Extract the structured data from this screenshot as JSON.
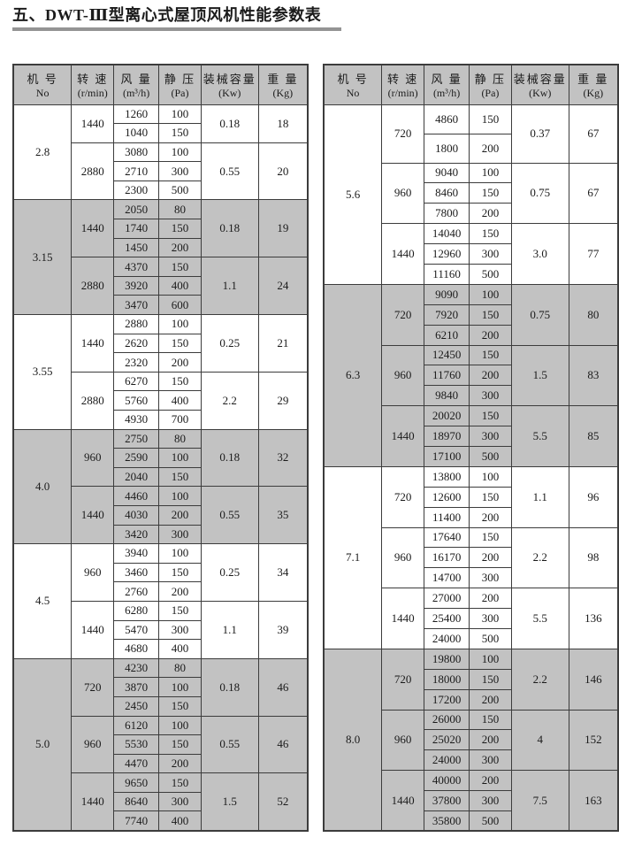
{
  "title": "五、DWT-Ⅲ型离心式屋顶风机性能参数表",
  "colors": {
    "shaded_bg": "#c2c2c2",
    "border": "#3c3c3c",
    "underline": "#949494"
  },
  "table": {
    "headers": [
      {
        "name": "no",
        "line1": "机 号",
        "line2": "No"
      },
      {
        "name": "speed",
        "line1": "转 速",
        "line2": "(r/min)"
      },
      {
        "name": "airflow",
        "line1": "风 量",
        "line2": "(m³/h)"
      },
      {
        "name": "pressure",
        "line1": "静 压",
        "line2": "(Pa)"
      },
      {
        "name": "capacity",
        "line1": "装械容量",
        "line2": "(Kw)"
      },
      {
        "name": "weight",
        "line1": "重 量",
        "line2": "(Kg)"
      }
    ],
    "left_sections": [
      {
        "no": "2.8",
        "shaded": false,
        "groups": [
          {
            "speed": "1440",
            "rows": [
              [
                "1260",
                "100"
              ],
              [
                "1040",
                "150"
              ]
            ],
            "capacity": "0.18",
            "weight": "18"
          },
          {
            "speed": "2880",
            "rows": [
              [
                "3080",
                "100"
              ],
              [
                "2710",
                "300"
              ],
              [
                "2300",
                "500"
              ]
            ],
            "capacity": "0.55",
            "weight": "20"
          }
        ]
      },
      {
        "no": "3.15",
        "shaded": true,
        "groups": [
          {
            "speed": "1440",
            "rows": [
              [
                "2050",
                "80"
              ],
              [
                "1740",
                "150"
              ],
              [
                "1450",
                "200"
              ]
            ],
            "capacity": "0.18",
            "weight": "19"
          },
          {
            "speed": "2880",
            "rows": [
              [
                "4370",
                "150"
              ],
              [
                "3920",
                "400"
              ],
              [
                "3470",
                "600"
              ]
            ],
            "capacity": "1.1",
            "weight": "24"
          }
        ]
      },
      {
        "no": "3.55",
        "shaded": false,
        "groups": [
          {
            "speed": "1440",
            "rows": [
              [
                "2880",
                "100"
              ],
              [
                "2620",
                "150"
              ],
              [
                "2320",
                "200"
              ]
            ],
            "capacity": "0.25",
            "weight": "21"
          },
          {
            "speed": "2880",
            "rows": [
              [
                "6270",
                "150"
              ],
              [
                "5760",
                "400"
              ],
              [
                "4930",
                "700"
              ]
            ],
            "capacity": "2.2",
            "weight": "29"
          }
        ]
      },
      {
        "no": "4.0",
        "shaded": true,
        "groups": [
          {
            "speed": "960",
            "rows": [
              [
                "2750",
                "80"
              ],
              [
                "2590",
                "100"
              ],
              [
                "2040",
                "150"
              ]
            ],
            "capacity": "0.18",
            "weight": "32"
          },
          {
            "speed": "1440",
            "rows": [
              [
                "4460",
                "100"
              ],
              [
                "4030",
                "200"
              ],
              [
                "3420",
                "300"
              ]
            ],
            "capacity": "0.55",
            "weight": "35"
          }
        ]
      },
      {
        "no": "4.5",
        "shaded": false,
        "groups": [
          {
            "speed": "960",
            "rows": [
              [
                "3940",
                "100"
              ],
              [
                "3460",
                "150"
              ],
              [
                "2760",
                "200"
              ]
            ],
            "capacity": "0.25",
            "weight": "34"
          },
          {
            "speed": "1440",
            "rows": [
              [
                "6280",
                "150"
              ],
              [
                "5470",
                "300"
              ],
              [
                "4680",
                "400"
              ]
            ],
            "capacity": "1.1",
            "weight": "39"
          }
        ]
      },
      {
        "no": "5.0",
        "shaded": true,
        "groups": [
          {
            "speed": "720",
            "rows": [
              [
                "4230",
                "80"
              ],
              [
                "3870",
                "100"
              ],
              [
                "2450",
                "150"
              ]
            ],
            "capacity": "0.18",
            "weight": "46"
          },
          {
            "speed": "960",
            "rows": [
              [
                "6120",
                "100"
              ],
              [
                "5530",
                "150"
              ],
              [
                "4470",
                "200"
              ]
            ],
            "capacity": "0.55",
            "weight": "46"
          },
          {
            "speed": "1440",
            "rows": [
              [
                "9650",
                "150"
              ],
              [
                "8640",
                "300"
              ],
              [
                "7740",
                "400"
              ]
            ],
            "capacity": "1.5",
            "weight": "52"
          }
        ]
      }
    ],
    "right_sections": [
      {
        "no": "5.6",
        "shaded": false,
        "groups": [
          {
            "speed": "720",
            "rows": [
              [
                "4860",
                "150"
              ],
              [
                "1800",
                "200"
              ]
            ],
            "capacity": "0.37",
            "weight": "67"
          },
          {
            "speed": "960",
            "rows": [
              [
                "9040",
                "100"
              ],
              [
                "8460",
                "150"
              ],
              [
                "7800",
                "200"
              ]
            ],
            "capacity": "0.75",
            "weight": "67"
          },
          {
            "speed": "1440",
            "rows": [
              [
                "14040",
                "150"
              ],
              [
                "12960",
                "300"
              ],
              [
                "11160",
                "500"
              ]
            ],
            "capacity": "3.0",
            "weight": "77"
          }
        ]
      },
      {
        "no": "6.3",
        "shaded": true,
        "groups": [
          {
            "speed": "720",
            "rows": [
              [
                "9090",
                "100"
              ],
              [
                "7920",
                "150"
              ],
              [
                "6210",
                "200"
              ]
            ],
            "capacity": "0.75",
            "weight": "80"
          },
          {
            "speed": "960",
            "rows": [
              [
                "12450",
                "150"
              ],
              [
                "11760",
                "200"
              ],
              [
                "9840",
                "300"
              ]
            ],
            "capacity": "1.5",
            "weight": "83"
          },
          {
            "speed": "1440",
            "rows": [
              [
                "20020",
                "150"
              ],
              [
                "18970",
                "300"
              ],
              [
                "17100",
                "500"
              ]
            ],
            "capacity": "5.5",
            "weight": "85"
          }
        ]
      },
      {
        "no": "7.1",
        "shaded": false,
        "groups": [
          {
            "speed": "720",
            "rows": [
              [
                "13800",
                "100"
              ],
              [
                "12600",
                "150"
              ],
              [
                "11400",
                "200"
              ]
            ],
            "capacity": "1.1",
            "weight": "96"
          },
          {
            "speed": "960",
            "rows": [
              [
                "17640",
                "150"
              ],
              [
                "16170",
                "200"
              ],
              [
                "14700",
                "300"
              ]
            ],
            "capacity": "2.2",
            "weight": "98"
          },
          {
            "speed": "1440",
            "rows": [
              [
                "27000",
                "200"
              ],
              [
                "25400",
                "300"
              ],
              [
                "24000",
                "500"
              ]
            ],
            "capacity": "5.5",
            "weight": "136"
          }
        ]
      },
      {
        "no": "8.0",
        "shaded": true,
        "groups": [
          {
            "speed": "720",
            "rows": [
              [
                "19800",
                "100"
              ],
              [
                "18000",
                "150"
              ],
              [
                "17200",
                "200"
              ]
            ],
            "capacity": "2.2",
            "weight": "146"
          },
          {
            "speed": "960",
            "rows": [
              [
                "26000",
                "150"
              ],
              [
                "25020",
                "200"
              ],
              [
                "24000",
                "300"
              ]
            ],
            "capacity": "4",
            "weight": "152"
          },
          {
            "speed": "1440",
            "rows": [
              [
                "40000",
                "200"
              ],
              [
                "37800",
                "300"
              ],
              [
                "35800",
                "500"
              ]
            ],
            "capacity": "7.5",
            "weight": "163"
          }
        ]
      }
    ]
  }
}
